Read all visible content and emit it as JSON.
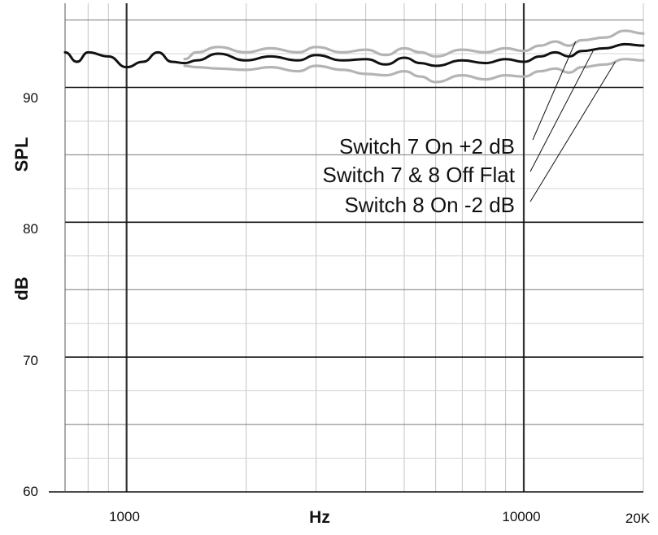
{
  "chart_data": {
    "type": "line",
    "xlabel": "Hz",
    "ylabel_top": "SPL",
    "ylabel_bottom": "dB",
    "x_scale": "log",
    "xlim": [
      700,
      20000
    ],
    "ylim": [
      60,
      96
    ],
    "x_tick_labels": [
      {
        "value": 1000,
        "label": "1000"
      },
      {
        "value": 10000,
        "label": "10000"
      },
      {
        "value": 20000,
        "label": "20K"
      }
    ],
    "y_tick_labels": [
      {
        "value": 90,
        "label": "90"
      },
      {
        "value": 80,
        "label": "80"
      },
      {
        "value": 70,
        "label": "70"
      },
      {
        "value": 60,
        "label": "60"
      }
    ],
    "grid": true,
    "series": [
      {
        "name": "Switch 7 On +2 dB",
        "color": "#b4b4b4",
        "x": [
          1400,
          1500,
          1700,
          2000,
          2300,
          2700,
          3000,
          3500,
          4000,
          4500,
          5000,
          5500,
          6000,
          7000,
          8000,
          9000,
          10000,
          11000,
          12000,
          13000,
          14000,
          16000,
          18000,
          20000
        ],
        "y": [
          92.1,
          92.6,
          93.0,
          92.6,
          92.9,
          92.6,
          93.0,
          92.6,
          92.8,
          92.4,
          92.9,
          92.6,
          92.3,
          92.8,
          92.6,
          92.9,
          92.7,
          93.1,
          93.4,
          93.1,
          93.5,
          93.7,
          94.2,
          94.0
        ]
      },
      {
        "name": "Switch 7 & 8 Off Flat",
        "color": "#111111",
        "x": [
          700,
          750,
          800,
          900,
          1000,
          1100,
          1200,
          1300,
          1400,
          1500,
          1700,
          2000,
          2300,
          2700,
          3000,
          3500,
          4000,
          4500,
          5000,
          5500,
          6000,
          7000,
          8000,
          9000,
          10000,
          11000,
          12000,
          13000,
          14000,
          16000,
          18000,
          20000
        ],
        "y": [
          92.6,
          91.9,
          92.6,
          92.3,
          91.5,
          91.9,
          92.6,
          91.9,
          91.8,
          92.0,
          92.5,
          92.0,
          92.3,
          92.0,
          92.4,
          92.0,
          92.1,
          91.7,
          92.2,
          91.8,
          91.6,
          92.0,
          91.8,
          92.1,
          91.9,
          92.3,
          92.6,
          92.3,
          92.7,
          92.9,
          93.2,
          93.1
        ]
      },
      {
        "name": "Switch 8 On -2 dB",
        "color": "#b4b4b4",
        "x": [
          1400,
          1500,
          1700,
          2000,
          2300,
          2700,
          3000,
          3500,
          4000,
          4500,
          5000,
          5500,
          6000,
          7000,
          8000,
          9000,
          10000,
          11000,
          12000,
          13000,
          14000,
          16000,
          18000,
          20000
        ],
        "y": [
          91.6,
          91.5,
          91.4,
          91.3,
          91.5,
          91.2,
          91.6,
          91.3,
          91.0,
          90.9,
          91.2,
          90.8,
          90.4,
          90.9,
          90.6,
          90.9,
          90.8,
          91.2,
          91.4,
          91.1,
          91.5,
          91.7,
          92.1,
          92.0
        ]
      }
    ],
    "annotations": [
      {
        "text": "Switch 7 On +2 dB",
        "pointer_x": 13500,
        "pointer_y": 93.4
      },
      {
        "text": "Switch 7 & 8 Off Flat",
        "pointer_x": 15000,
        "pointer_y": 92.8
      },
      {
        "text": "Switch 8 On -2 dB",
        "pointer_x": 17000,
        "pointer_y": 91.9
      }
    ]
  }
}
